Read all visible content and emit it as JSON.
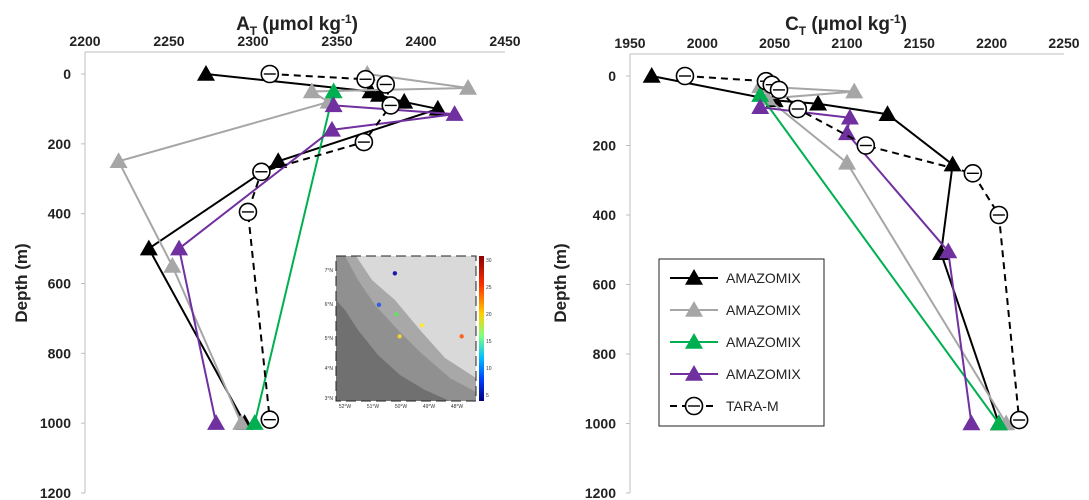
{
  "colors": {
    "black": "#000000",
    "gray": "#a6a6a6",
    "green": "#00b050",
    "purple": "#7030a0",
    "axis": "#bfbfbf"
  },
  "chart_data": [
    {
      "type": "line",
      "title_main": "A",
      "title_sub": "T",
      "title_unit": " (µmol kg",
      "title_sup": "-1",
      "title_close": ")",
      "ylabel": "Depth (m)",
      "xlim": [
        2200,
        2450
      ],
      "ylim": [
        0,
        1200
      ],
      "y_inverted": true,
      "x_axis_position": "top",
      "xticks": [
        "2200",
        "2250",
        "2300",
        "2350",
        "2400",
        "2450"
      ],
      "yticks": [
        "0",
        "200",
        "400",
        "600",
        "800",
        "1000",
        "1200"
      ],
      "series": [
        {
          "name": "AMAZOMIX",
          "color": "black",
          "marker": "triangle",
          "dashed": false,
          "x": [
            2272,
            2370,
            2375,
            2390,
            2410,
            2315,
            2238,
            2295
          ],
          "y": [
            0,
            50,
            60,
            80,
            100,
            250,
            500,
            1000
          ]
        },
        {
          "name": "AMAZOMIX",
          "color": "gray",
          "marker": "triangle",
          "dashed": false,
          "x": [
            2368,
            2428,
            2335,
            2345,
            2220,
            2252,
            2293
          ],
          "y": [
            0,
            40,
            50,
            80,
            250,
            550,
            1000
          ]
        },
        {
          "name": "AMAZOMIX",
          "color": "green",
          "marker": "triangle",
          "dashed": false,
          "x": [
            2348,
            2301
          ],
          "y": [
            50,
            1000
          ]
        },
        {
          "name": "AMAZOMIX",
          "color": "purple",
          "marker": "triangle",
          "dashed": false,
          "x": [
            2348,
            2420,
            2347,
            2256,
            2278
          ],
          "y": [
            90,
            115,
            160,
            500,
            1000
          ]
        },
        {
          "name": "TARA-M",
          "color": "black",
          "marker": "circle",
          "dashed": true,
          "x": [
            2310,
            2367,
            2379,
            2382,
            2366,
            2305,
            2297,
            2310
          ],
          "y": [
            0,
            15,
            30,
            90,
            195,
            280,
            395,
            990
          ]
        }
      ]
    },
    {
      "type": "line",
      "title_main": "C",
      "title_sub": "T",
      "title_unit": " (µmol kg",
      "title_sup": "-1",
      "title_close": ")",
      "ylabel": "Depth (m)",
      "xlim": [
        1950,
        2250
      ],
      "ylim": [
        0,
        1200
      ],
      "y_inverted": true,
      "x_axis_position": "top",
      "xticks": [
        "1950",
        "2000",
        "2050",
        "2100",
        "2150",
        "2200",
        "2250"
      ],
      "yticks": [
        "0",
        "200",
        "400",
        "600",
        "800",
        "1000",
        "1200"
      ],
      "series": [
        {
          "name": "AMAZOMIX",
          "color": "black",
          "marker": "triangle",
          "dashed": false,
          "x": [
            1965,
            2050,
            2080,
            2128,
            2173,
            2165,
            2205
          ],
          "y": [
            0,
            70,
            80,
            110,
            255,
            510,
            1000
          ]
        },
        {
          "name": "AMAZOMIX",
          "color": "gray",
          "marker": "triangle",
          "dashed": false,
          "x": [
            2040,
            2105,
            2045,
            2100,
            2210
          ],
          "y": [
            30,
            45,
            65,
            250,
            1000
          ]
        },
        {
          "name": "AMAZOMIX",
          "color": "green",
          "marker": "triangle",
          "dashed": false,
          "x": [
            2040,
            2205
          ],
          "y": [
            55,
            1000
          ]
        },
        {
          "name": "AMAZOMIX",
          "color": "purple",
          "marker": "triangle",
          "dashed": false,
          "x": [
            2040,
            2102,
            2100,
            2170,
            2186
          ],
          "y": [
            90,
            120,
            165,
            505,
            1000
          ]
        },
        {
          "name": "TARA-M",
          "color": "black",
          "marker": "circle",
          "dashed": true,
          "x": [
            1988,
            2044,
            2048,
            2053,
            2066,
            2113,
            2187,
            2205,
            2219
          ],
          "y": [
            0,
            15,
            25,
            40,
            95,
            200,
            280,
            400,
            990
          ]
        }
      ],
      "legend": {
        "placement": "lower-left",
        "entries": [
          "AMAZOMIX",
          "AMAZOMIX",
          "AMAZOMIX",
          "AMAZOMIX",
          "TARA-M"
        ]
      }
    }
  ],
  "inset_map": {
    "lat_labels": [
      "7°N",
      "6°N",
      "5°N",
      "4°N",
      "3°N"
    ],
    "lon_labels": [
      "52°W",
      "51°W",
      "50°W",
      "49°W",
      "48°W"
    ],
    "colorbar_ticks": [
      "30",
      "25",
      "20",
      "15",
      "10",
      "5"
    ],
    "stations": [
      {
        "lon": -50.35,
        "lat": 6.95,
        "color": "#1a1aa8"
      },
      {
        "lon": -50.85,
        "lat": 5.95,
        "color": "#3060e0"
      },
      {
        "lon": -50.3,
        "lat": 5.65,
        "color": "#66dd66"
      },
      {
        "lon": -49.5,
        "lat": 5.3,
        "color": "#ffe640"
      },
      {
        "lon": -50.2,
        "lat": 4.95,
        "color": "#f0d030"
      },
      {
        "lon": -48.25,
        "lat": 4.95,
        "color": "#ff6020"
      }
    ]
  }
}
